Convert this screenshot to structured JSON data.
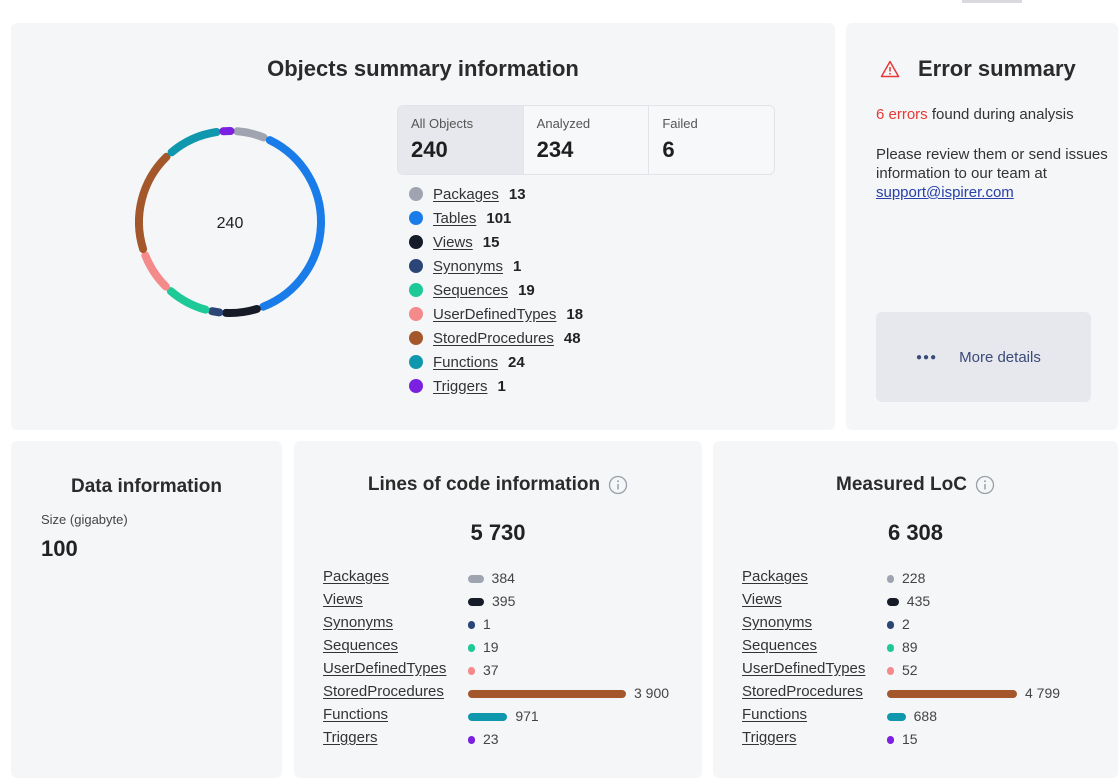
{
  "objects": {
    "title": "Objects summary information",
    "center_total": "240",
    "tabs": [
      {
        "label": "All Objects",
        "value": "240"
      },
      {
        "label": "Analyzed",
        "value": "234"
      },
      {
        "label": "Failed",
        "value": "6"
      }
    ],
    "legend": [
      {
        "name": "Packages",
        "count": "13",
        "color": "#a0a4b0"
      },
      {
        "name": "Tables",
        "count": "101",
        "color": "#1a7ce8"
      },
      {
        "name": "Views",
        "count": "15",
        "color": "#161c27"
      },
      {
        "name": "Synonyms",
        "count": "1",
        "color": "#2a4576"
      },
      {
        "name": "Sequences",
        "count": "19",
        "color": "#1ec998"
      },
      {
        "name": "UserDefinedTypes",
        "count": "18",
        "color": "#f48a8a"
      },
      {
        "name": "StoredProcedures",
        "count": "48",
        "color": "#a3572a"
      },
      {
        "name": "Functions",
        "count": "24",
        "color": "#0f97ad"
      },
      {
        "name": "Triggers",
        "count": "1",
        "color": "#7b1fe0"
      }
    ]
  },
  "error": {
    "title": "Error summary",
    "count_text": "6 errors",
    "found_text": " found during analysis",
    "review_text": "Please review them or send issues information to our team at ",
    "email": "support@ispirer.com",
    "more_label": "More details"
  },
  "data_info": {
    "title": "Data information",
    "size_label": "Size (gigabyte)",
    "size_value": "100"
  },
  "loc": {
    "title": "Lines of code information",
    "total": "5 730",
    "rows": [
      {
        "name": "Packages",
        "value": 384,
        "label": "384",
        "color": "#a0a4b0"
      },
      {
        "name": "Views",
        "value": 395,
        "label": "395",
        "color": "#161c27"
      },
      {
        "name": "Synonyms",
        "value": 1,
        "label": "1",
        "color": "#2a4576"
      },
      {
        "name": "Sequences",
        "value": 19,
        "label": "19",
        "color": "#1ec998"
      },
      {
        "name": "UserDefinedTypes",
        "value": 37,
        "label": "37",
        "color": "#f48a8a"
      },
      {
        "name": "StoredProcedures",
        "value": 3900,
        "label": "3 900",
        "color": "#a3572a"
      },
      {
        "name": "Functions",
        "value": 971,
        "label": "971",
        "color": "#0f97ad"
      },
      {
        "name": "Triggers",
        "value": 23,
        "label": "23",
        "color": "#7b1fe0"
      }
    ]
  },
  "mloc": {
    "title": "Measured LoC",
    "total": "6 308",
    "rows": [
      {
        "name": "Packages",
        "value": 228,
        "label": "228",
        "color": "#a0a4b0"
      },
      {
        "name": "Views",
        "value": 435,
        "label": "435",
        "color": "#161c27"
      },
      {
        "name": "Synonyms",
        "value": 2,
        "label": "2",
        "color": "#2a4576"
      },
      {
        "name": "Sequences",
        "value": 89,
        "label": "89",
        "color": "#1ec998"
      },
      {
        "name": "UserDefinedTypes",
        "value": 52,
        "label": "52",
        "color": "#f48a8a"
      },
      {
        "name": "StoredProcedures",
        "value": 4799,
        "label": "4 799",
        "color": "#a3572a"
      },
      {
        "name": "Functions",
        "value": 688,
        "label": "688",
        "color": "#0f97ad"
      },
      {
        "name": "Triggers",
        "value": 15,
        "label": "15",
        "color": "#7b1fe0"
      }
    ]
  }
}
